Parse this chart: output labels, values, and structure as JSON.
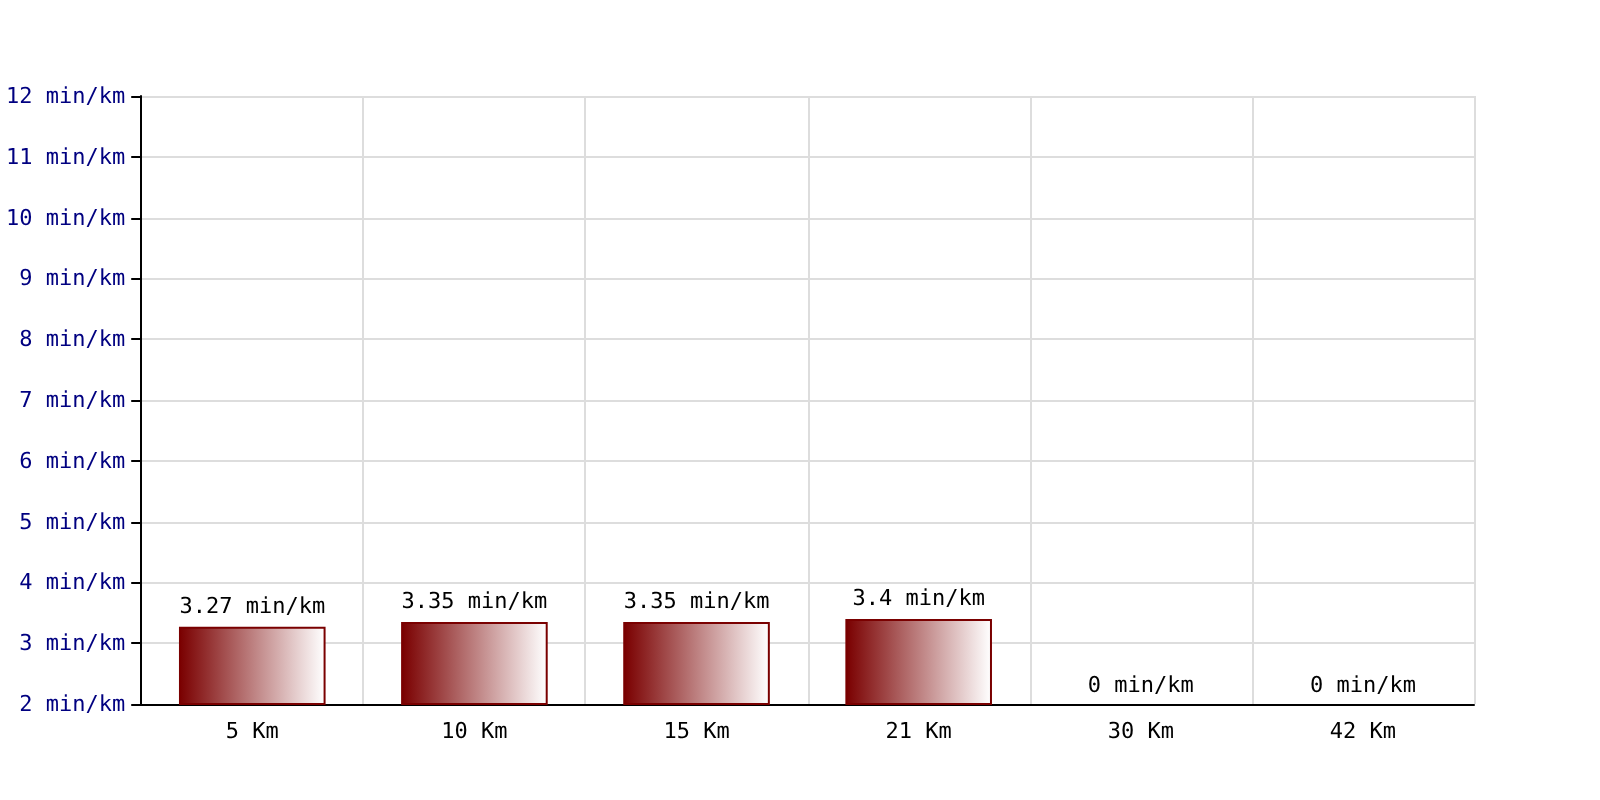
{
  "chart_data": {
    "type": "bar",
    "categories": [
      "5 Km",
      "10 Km",
      "15 Km",
      "21 Km",
      "30 Km",
      "42 Km"
    ],
    "values": [
      3.27,
      3.35,
      3.35,
      3.4,
      null,
      null
    ],
    "value_labels": [
      "3.27 min/km",
      "3.35 min/km",
      "3.35 min/km",
      "3.4 min/km",
      "0 min/km",
      "0 min/km"
    ],
    "color": "#7a0000",
    "ylim": [
      2,
      12
    ],
    "yticks": [
      {
        "value": 2,
        "label": "2 min/km"
      },
      {
        "value": 3,
        "label": "3 min/km"
      },
      {
        "value": 4,
        "label": "4 min/km"
      },
      {
        "value": 5,
        "label": "5 min/km"
      },
      {
        "value": 6,
        "label": "6 min/km"
      },
      {
        "value": 7,
        "label": "7 min/km"
      },
      {
        "value": 8,
        "label": "8 min/km"
      },
      {
        "value": 9,
        "label": "9 min/km"
      },
      {
        "value": 10,
        "label": "10 min/km"
      },
      {
        "value": 11,
        "label": "11 min/km"
      },
      {
        "value": 12,
        "label": "12 min/km"
      }
    ],
    "grid": true
  }
}
